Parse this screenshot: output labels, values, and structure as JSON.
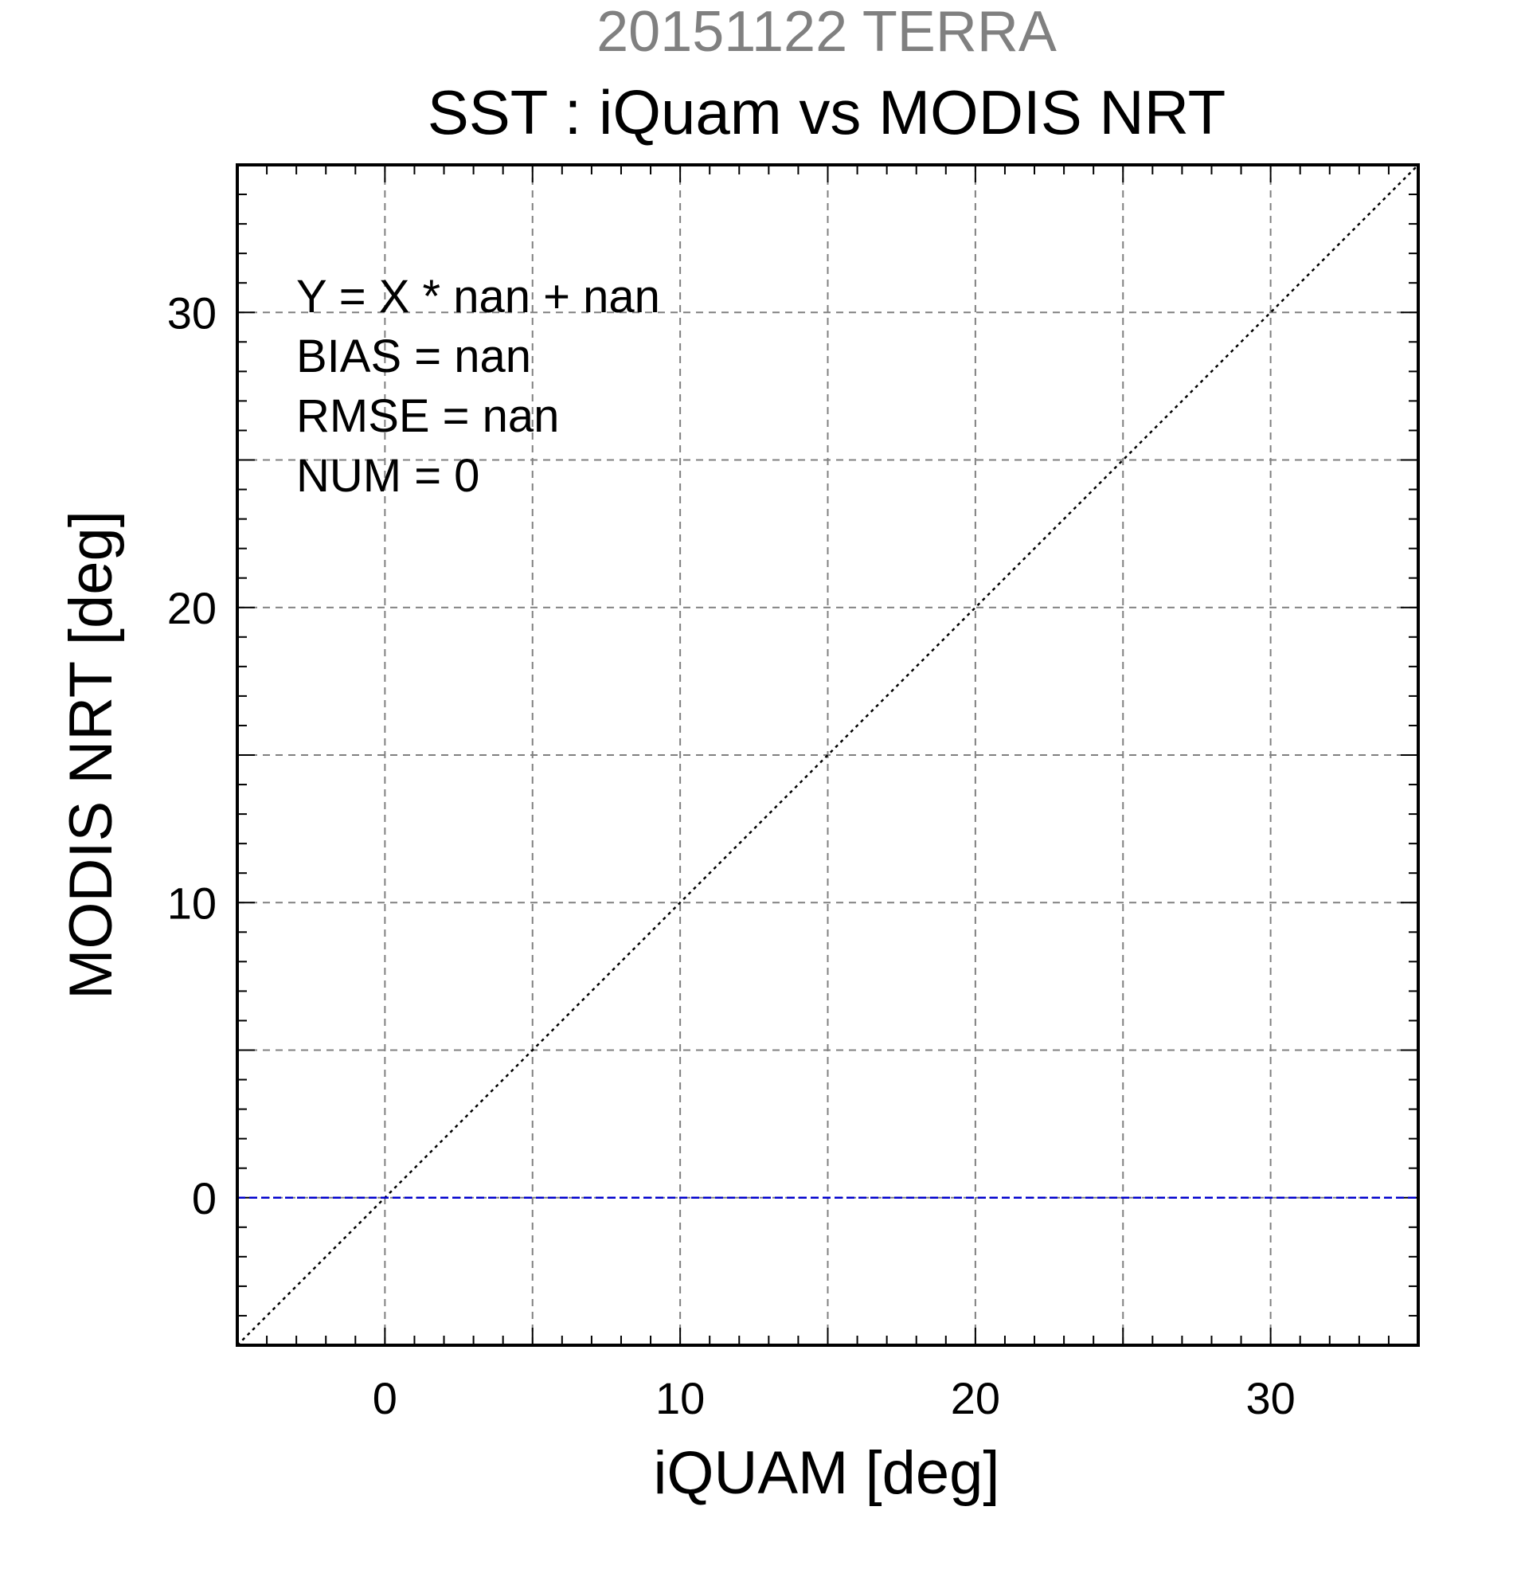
{
  "chart_data": {
    "type": "scatter",
    "supertitle": "20151122 TERRA",
    "title": "SST : iQuam vs MODIS NRT",
    "xlabel": "iQUAM [deg]",
    "ylabel": "MODIS NRT [deg]",
    "xlim": [
      -5,
      35
    ],
    "ylim": [
      -5,
      35
    ],
    "major_ticks": [
      0,
      10,
      20,
      30
    ],
    "major_tick_labels": [
      "0",
      "10",
      "20",
      "30"
    ],
    "grid_values": [
      0,
      5,
      10,
      15,
      20,
      25,
      30
    ],
    "minor_tick_step": 1,
    "grid": true,
    "series": [],
    "reference_lines": [
      {
        "kind": "one-to-one",
        "style": "dotted",
        "color": "#000000",
        "x": [
          -5,
          35
        ],
        "y": [
          -5,
          35
        ]
      },
      {
        "kind": "fit",
        "style": "dashed",
        "color": "#0000cc",
        "x": [
          -5,
          35
        ],
        "y": [
          0,
          0
        ]
      }
    ],
    "annotations": [
      "Y = X * nan + nan",
      "BIAS = nan",
      "RMSE = nan",
      "NUM = 0"
    ],
    "colors": {
      "supertitle": "#808080",
      "grid": "#808080",
      "fit_line": "#0000cc"
    }
  }
}
